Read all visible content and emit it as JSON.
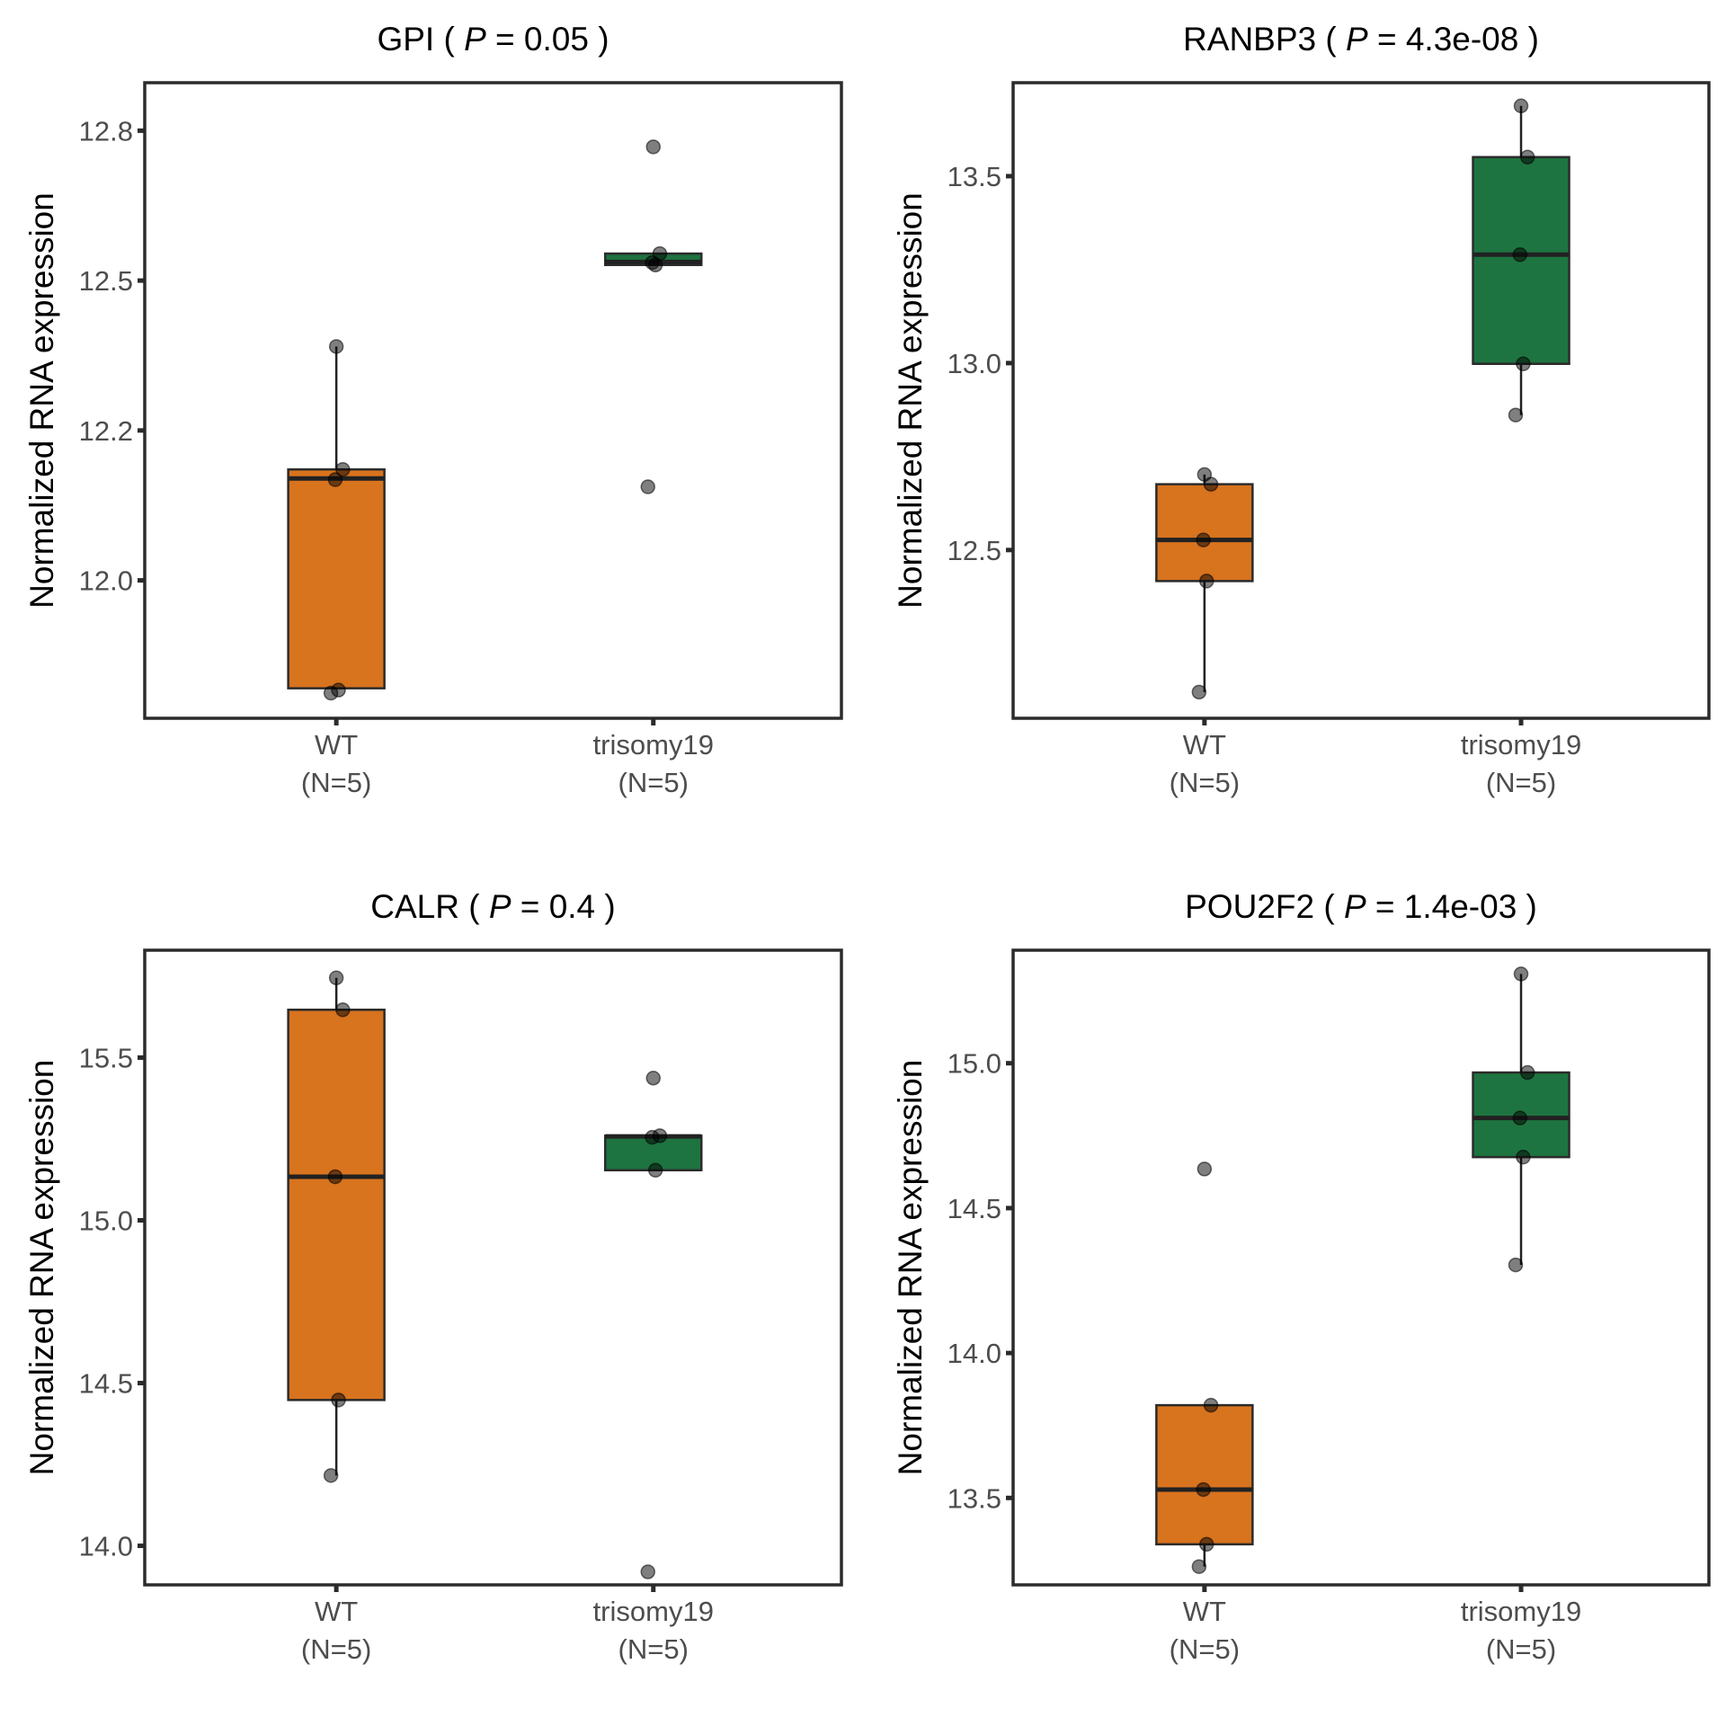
{
  "chart_data": [
    {
      "type": "box",
      "title": {
        "gene": "GPI",
        "p_label": "P",
        "p_value": "0.05"
      },
      "ylabel": "Normalized RNA expression",
      "yticks": [
        12.0,
        12.25,
        12.5,
        12.75
      ],
      "ytick_labels": [
        "12.0",
        "12.2",
        "12.5",
        "12.8"
      ],
      "ylim": [
        11.77,
        12.83
      ],
      "categories": [
        "WT",
        "trisomy19"
      ],
      "category_labels": [
        [
          "WT",
          "(N=5)"
        ],
        [
          "trisomy19",
          "(N=5)"
        ]
      ],
      "groups": [
        {
          "name": "WT",
          "color": "#D8731E",
          "q1": 11.82,
          "median": 12.17,
          "q3": 12.185,
          "whisker_low": 11.82,
          "whisker_high": 12.39,
          "points": [
            12.39,
            12.185,
            12.168,
            11.817,
            11.812
          ]
        },
        {
          "name": "trisomy19",
          "color": "#1E7440",
          "q1": 12.526,
          "median": 12.531,
          "q3": 12.545,
          "whisker_low": 12.526,
          "whisker_high": 12.545,
          "points": [
            12.723,
            12.545,
            12.53,
            12.526,
            12.156
          ]
        }
      ]
    },
    {
      "type": "box",
      "title": {
        "gene": "RANBP3",
        "p_label": "P",
        "p_value": "4.3e-08"
      },
      "ylabel": "Normalized RNA expression",
      "yticks": [
        12.5,
        13.0,
        13.5
      ],
      "ytick_labels": [
        "12.5",
        "13.0",
        "13.5"
      ],
      "ylim": [
        12.05,
        13.75
      ],
      "categories": [
        "WT",
        "trisomy19"
      ],
      "category_labels": [
        [
          "WT",
          "(N=5)"
        ],
        [
          "trisomy19",
          "(N=5)"
        ]
      ],
      "groups": [
        {
          "name": "WT",
          "color": "#D8731E",
          "q1": 12.417,
          "median": 12.527,
          "q3": 12.676,
          "whisker_low": 12.12,
          "whisker_high": 12.702,
          "points": [
            12.702,
            12.676,
            12.527,
            12.417,
            12.12
          ]
        },
        {
          "name": "trisomy19",
          "color": "#1E7440",
          "q1": 12.998,
          "median": 13.29,
          "q3": 13.551,
          "whisker_low": 12.861,
          "whisker_high": 13.688,
          "points": [
            13.688,
            13.551,
            13.29,
            12.998,
            12.861
          ]
        }
      ]
    },
    {
      "type": "box",
      "title": {
        "gene": "CALR",
        "p_label": "P",
        "p_value": "0.4"
      },
      "ylabel": "Normalized RNA expression",
      "yticks": [
        14.0,
        14.5,
        15.0,
        15.5
      ],
      "ytick_labels": [
        "14.0",
        "14.5",
        "15.0",
        "15.5"
      ],
      "ylim": [
        13.88,
        15.83
      ],
      "categories": [
        "WT",
        "trisomy19"
      ],
      "category_labels": [
        [
          "WT",
          "(N=5)"
        ],
        [
          "trisomy19",
          "(N=5)"
        ]
      ],
      "groups": [
        {
          "name": "WT",
          "color": "#D8731E",
          "q1": 14.448,
          "median": 15.134,
          "q3": 15.647,
          "whisker_low": 14.216,
          "whisker_high": 15.745,
          "points": [
            15.745,
            15.647,
            15.134,
            14.448,
            14.216
          ]
        },
        {
          "name": "trisomy19",
          "color": "#1E7440",
          "q1": 15.154,
          "median": 15.258,
          "q3": 15.26,
          "whisker_low": 15.154,
          "whisker_high": 15.26,
          "points": [
            15.437,
            15.26,
            15.255,
            15.154,
            13.92
          ]
        }
      ]
    },
    {
      "type": "box",
      "title": {
        "gene": "POU2F2",
        "p_label": "P",
        "p_value": "1.4e-03"
      },
      "ylabel": "Normalized RNA expression",
      "yticks": [
        13.5,
        14.0,
        14.5,
        15.0
      ],
      "ytick_labels": [
        "13.5",
        "14.0",
        "14.5",
        "15.0"
      ],
      "ylim": [
        13.2,
        15.39
      ],
      "categories": [
        "WT",
        "trisomy19"
      ],
      "category_labels": [
        [
          "WT",
          "(N=5)"
        ],
        [
          "trisomy19",
          "(N=5)"
        ]
      ],
      "groups": [
        {
          "name": "WT",
          "color": "#D8731E",
          "q1": 13.34,
          "median": 13.529,
          "q3": 13.82,
          "whisker_low": 13.263,
          "whisker_high": 13.82,
          "points": [
            14.635,
            13.82,
            13.529,
            13.34,
            13.263
          ]
        },
        {
          "name": "trisomy19",
          "color": "#1E7440",
          "q1": 14.676,
          "median": 14.811,
          "q3": 14.968,
          "whisker_low": 14.304,
          "whisker_high": 15.308,
          "points": [
            15.308,
            14.968,
            14.811,
            14.676,
            14.304
          ]
        }
      ]
    }
  ]
}
